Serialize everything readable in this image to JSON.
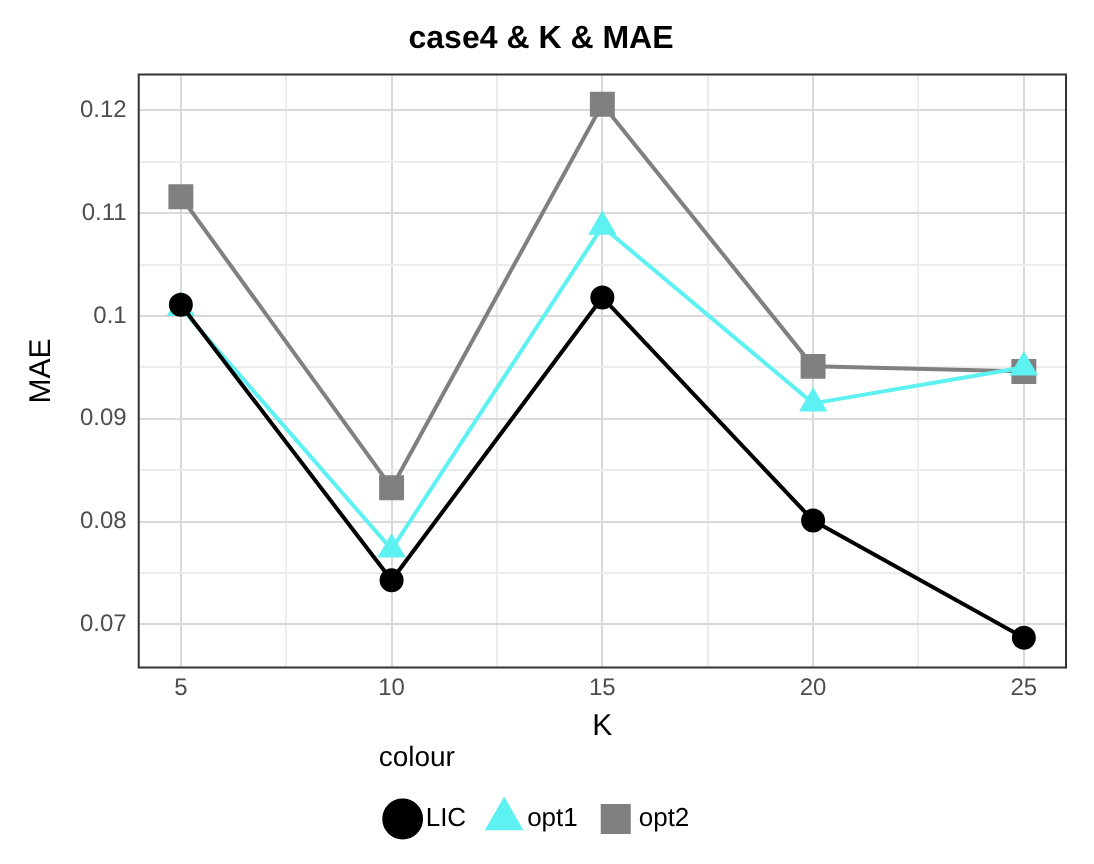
{
  "chart_data": {
    "type": "line",
    "title": "case4 & K & MAE",
    "xlabel": "K",
    "ylabel": "MAE",
    "legend_title": "colour",
    "x": [
      5,
      10,
      15,
      20,
      25
    ],
    "series": [
      {
        "name": "LIC",
        "color": "#000000",
        "marker": "circle",
        "values": [
          0.1011,
          0.0743,
          0.1018,
          0.0801,
          0.0687
        ]
      },
      {
        "name": "opt1",
        "color": "#5ef1f2",
        "marker": "triangle",
        "values": [
          0.1008,
          0.0773,
          0.1087,
          0.0915,
          0.095
        ]
      },
      {
        "name": "opt2",
        "color": "#808080",
        "marker": "square",
        "values": [
          0.1116,
          0.0833,
          0.1206,
          0.0951,
          0.0946
        ]
      }
    ],
    "xlim": [
      4,
      26
    ],
    "xticks": [
      5,
      {
        "value": 7.5,
        "label": null
      },
      10,
      {
        "value": 12.5,
        "label": null
      },
      15,
      {
        "value": 17.5,
        "label": null
      },
      20,
      {
        "value": 22.5,
        "label": null
      },
      25
    ],
    "ylim": [
      0.0658,
      0.1235
    ],
    "yticks": [
      0.07,
      {
        "value": 0.075,
        "label": null
      },
      0.08,
      {
        "value": 0.085,
        "label": null
      },
      0.09,
      {
        "value": 0.095,
        "label": null
      },
      0.1,
      {
        "value": 0.105,
        "label": null
      },
      0.11,
      {
        "value": 0.115,
        "label": null
      },
      0.12
    ],
    "grid": true,
    "legend": "bottom",
    "line_style": "solid"
  }
}
